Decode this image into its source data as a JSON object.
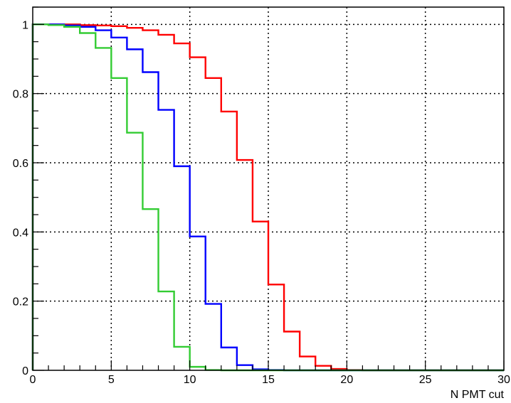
{
  "chart_data": {
    "type": "line",
    "step": true,
    "title": "",
    "xlabel": "N PMT cut",
    "ylabel": "",
    "xlim": [
      0,
      30
    ],
    "ylim": [
      0,
      1.05
    ],
    "grid": true,
    "x_tick_labels": [
      "0",
      "5",
      "10",
      "15",
      "20",
      "25",
      "30"
    ],
    "y_tick_labels": [
      "0",
      "0.2",
      "0.4",
      "0.6",
      "0.8",
      "1"
    ],
    "x_major_ticks": [
      0,
      5,
      10,
      15,
      20,
      25,
      30
    ],
    "y_major_ticks": [
      0,
      0.2,
      0.4,
      0.6,
      0.8,
      1.0
    ],
    "bin_edges": [
      0,
      1,
      2,
      3,
      4,
      5,
      6,
      7,
      8,
      9,
      10,
      11,
      12,
      13,
      14,
      15,
      16,
      17,
      18,
      19,
      20,
      21,
      22,
      23,
      24,
      25,
      26,
      27,
      28,
      29,
      30
    ],
    "series": [
      {
        "color": "#ff0000",
        "values": [
          1.0,
          1.0,
          1.0,
          0.998,
          0.997,
          0.995,
          0.99,
          0.983,
          0.97,
          0.945,
          0.905,
          0.845,
          0.748,
          0.608,
          0.43,
          0.248,
          0.112,
          0.04,
          0.013,
          0.004,
          0.001,
          0,
          0,
          0,
          0,
          0,
          0,
          0,
          0,
          0
        ]
      },
      {
        "color": "#0000ff",
        "values": [
          1.0,
          1.0,
          0.997,
          0.993,
          0.983,
          0.962,
          0.928,
          0.862,
          0.753,
          0.59,
          0.387,
          0.192,
          0.066,
          0.015,
          0.003,
          0.001,
          0,
          0,
          0,
          0,
          0,
          0,
          0,
          0,
          0,
          0,
          0,
          0,
          0,
          0
        ]
      },
      {
        "color": "#33cc33",
        "values": [
          1.0,
          0.998,
          0.993,
          0.975,
          0.932,
          0.845,
          0.687,
          0.466,
          0.228,
          0.068,
          0.01,
          0.001,
          0,
          0,
          0,
          0,
          0,
          0,
          0,
          0,
          0,
          0,
          0,
          0,
          0,
          0,
          0,
          0,
          0,
          0
        ]
      }
    ]
  }
}
